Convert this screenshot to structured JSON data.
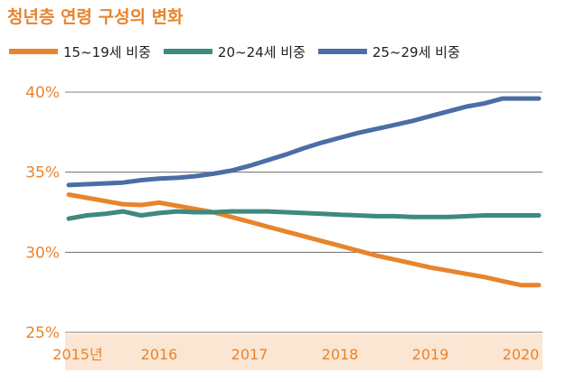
{
  "title": "청년층 연령 구성의 변화",
  "colors": {
    "accent": "#e8842c",
    "x_band": "#fbe6d3",
    "grid": "#555555"
  },
  "chart_data": {
    "type": "line",
    "title": "청년층 연령 구성의 변화",
    "xlabel": "",
    "ylabel": "",
    "x_tick_labels": [
      "2015년",
      "2016",
      "2017",
      "2018",
      "2019",
      "2020"
    ],
    "y_tick_labels": [
      "40%",
      "35%",
      "30%",
      "25%"
    ],
    "ylim": [
      25,
      40
    ],
    "grid": true,
    "legend_position": "top-left",
    "x": [
      2015.0,
      2015.2,
      2015.4,
      2015.6,
      2015.8,
      2016.0,
      2016.2,
      2016.4,
      2016.6,
      2016.8,
      2017.0,
      2017.2,
      2017.4,
      2017.6,
      2017.8,
      2018.0,
      2018.2,
      2018.4,
      2018.6,
      2018.8,
      2019.0,
      2019.2,
      2019.4,
      2019.6,
      2019.8,
      2020.0,
      2020.2
    ],
    "series": [
      {
        "name": "15~19세 비중",
        "color": "#e8842c",
        "values": [
          33.6,
          33.4,
          33.2,
          33.0,
          32.95,
          33.1,
          32.9,
          32.7,
          32.5,
          32.2,
          31.9,
          31.6,
          31.3,
          31.0,
          30.7,
          30.4,
          30.1,
          29.8,
          29.55,
          29.3,
          29.05,
          28.85,
          28.65,
          28.45,
          28.2,
          27.95,
          27.95
        ]
      },
      {
        "name": "20~24세 비중",
        "color": "#3e8a7c",
        "values": [
          32.1,
          32.3,
          32.4,
          32.55,
          32.3,
          32.45,
          32.55,
          32.5,
          32.5,
          32.55,
          32.55,
          32.55,
          32.5,
          32.45,
          32.4,
          32.35,
          32.3,
          32.25,
          32.25,
          32.2,
          32.2,
          32.2,
          32.25,
          32.3,
          32.3,
          32.3,
          32.3
        ]
      },
      {
        "name": "25~29세 비중",
        "color": "#4a6ea5",
        "values": [
          34.2,
          34.25,
          34.3,
          34.35,
          34.5,
          34.6,
          34.65,
          34.75,
          34.9,
          35.1,
          35.4,
          35.75,
          36.1,
          36.5,
          36.85,
          37.15,
          37.45,
          37.7,
          37.95,
          38.2,
          38.5,
          38.8,
          39.1,
          39.3,
          39.6,
          39.6,
          39.6
        ]
      }
    ]
  }
}
